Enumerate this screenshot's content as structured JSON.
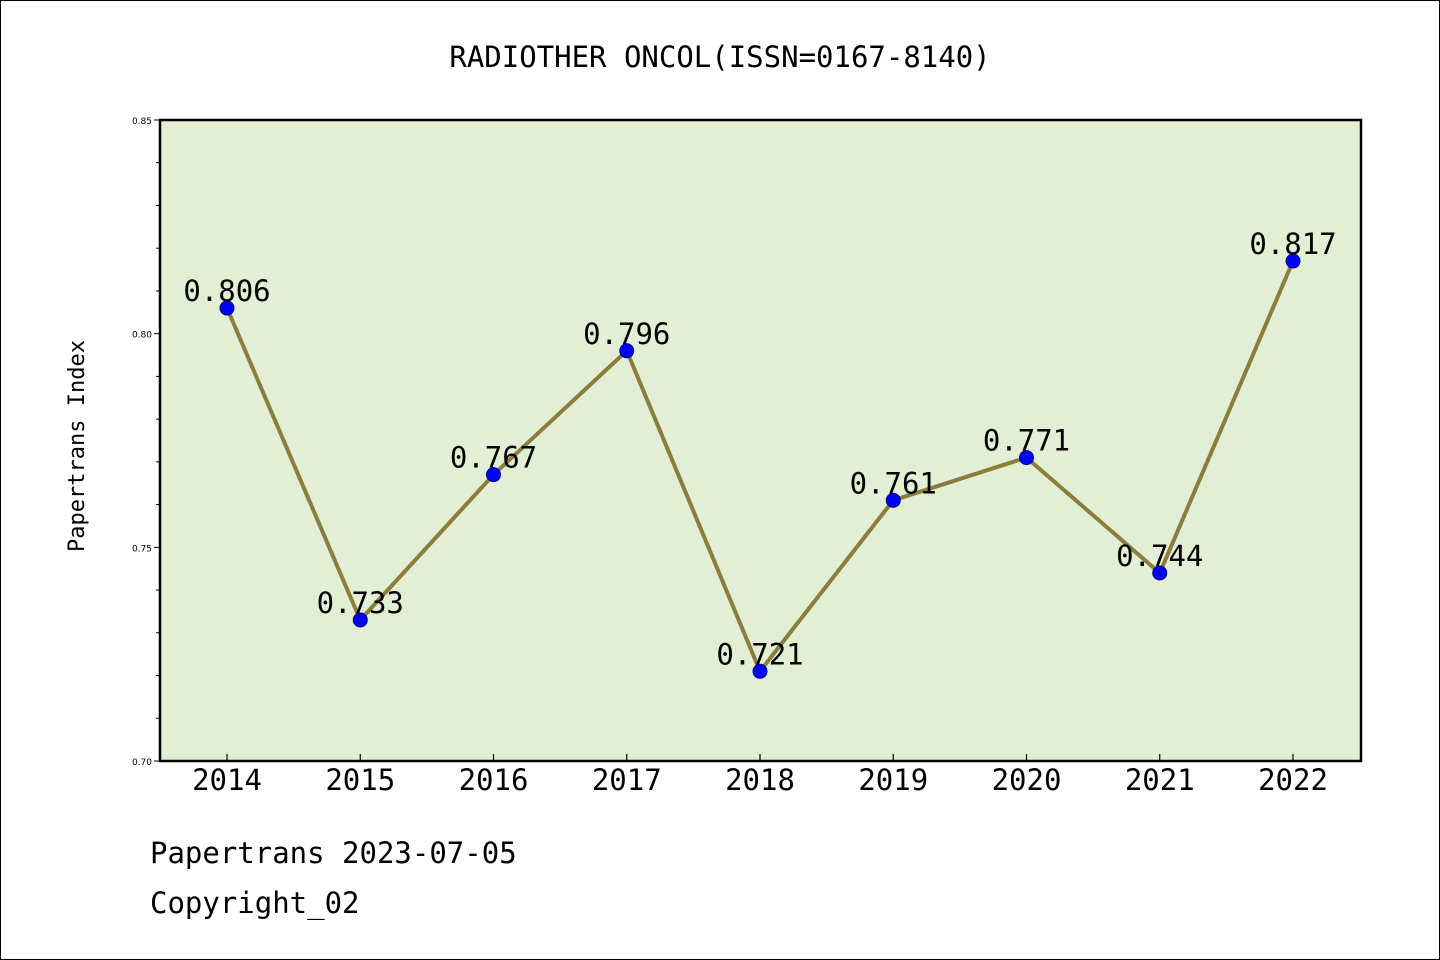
{
  "chart_data": {
    "type": "line",
    "title": "RADIOTHER ONCOL(ISSN=0167-8140)",
    "xlabel": "",
    "ylabel": "Papertrans Index",
    "categories": [
      "2014",
      "2015",
      "2016",
      "2017",
      "2018",
      "2019",
      "2020",
      "2021",
      "2022"
    ],
    "values": [
      0.806,
      0.733,
      0.767,
      0.796,
      0.721,
      0.761,
      0.771,
      0.744,
      0.817
    ],
    "data_labels": [
      "0.806",
      "0.733",
      "0.767",
      "0.796",
      "0.721",
      "0.761",
      "0.771",
      "0.744",
      "0.817"
    ],
    "ylim": [
      0.7,
      0.85
    ],
    "y_ticks": [
      0.7,
      0.75,
      0.8,
      0.85
    ],
    "y_tick_labels": [
      "0.70",
      "0.75",
      "0.80",
      "0.85"
    ],
    "grid": false,
    "legend": "none",
    "colors": {
      "plot_background": "#e2efd4",
      "line": "#8b7d3a",
      "marker": "#0000ff",
      "axis": "#000000"
    }
  },
  "footer": {
    "source": "Papertrans 2023-07-05",
    "copyright": "Copyright_02"
  }
}
